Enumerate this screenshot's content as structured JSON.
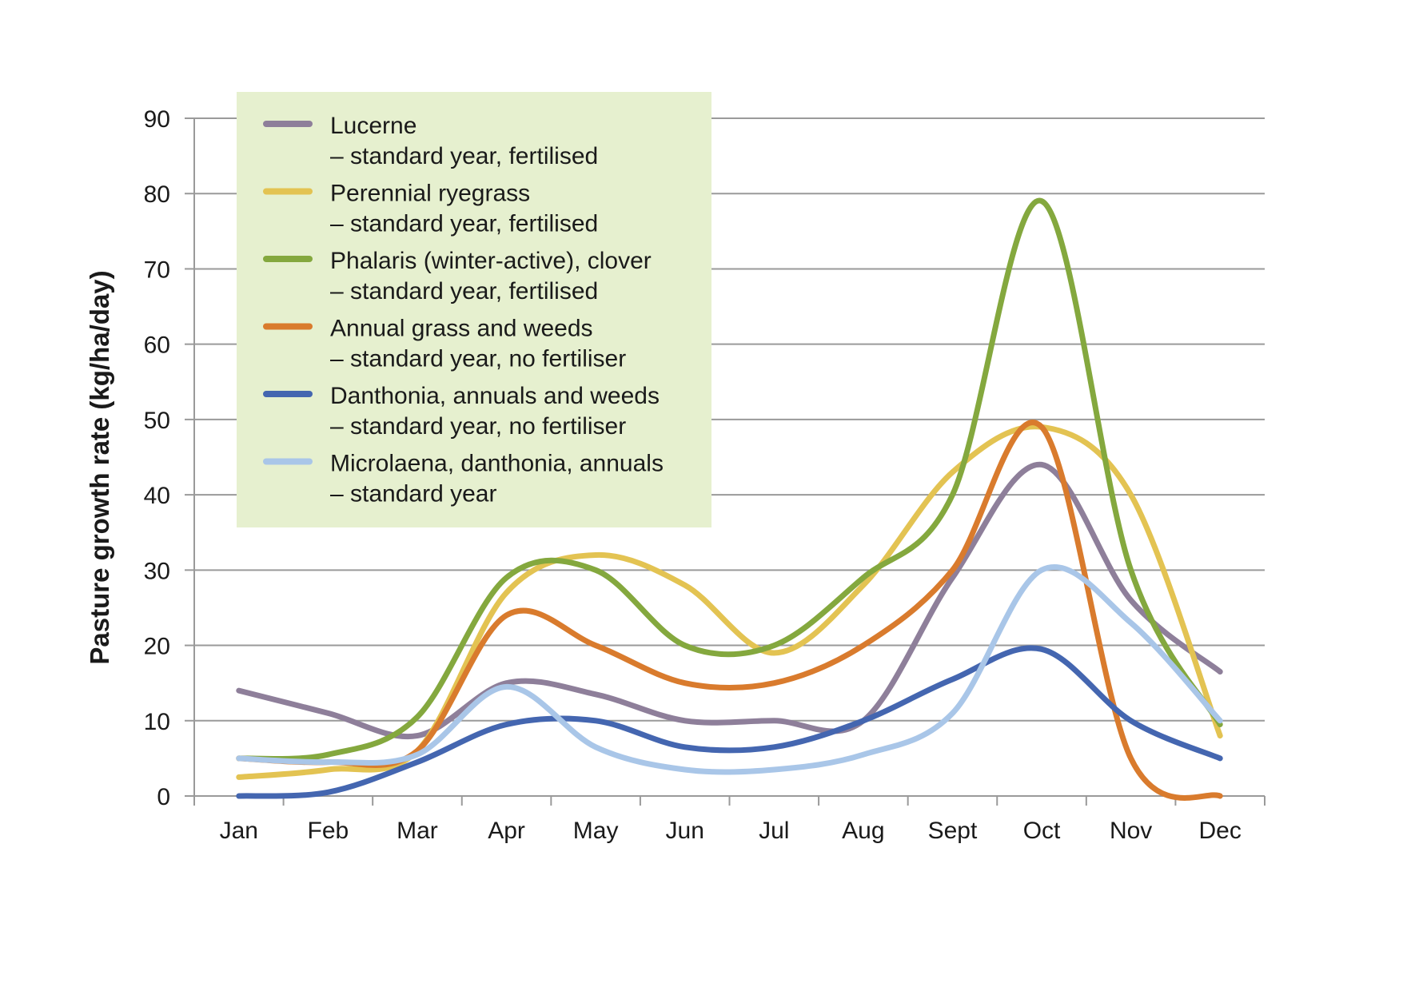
{
  "chart_data": {
    "type": "line",
    "title": "",
    "xlabel": "",
    "ylabel": "Pasture growth rate (kg/ha/day)",
    "ylim": [
      0,
      90
    ],
    "yticks": [
      0,
      10,
      20,
      30,
      40,
      50,
      60,
      70,
      80,
      90
    ],
    "categories": [
      "Jan",
      "Feb",
      "Mar",
      "Apr",
      "May",
      "Jun",
      "Jul",
      "Aug",
      "Sept",
      "Oct",
      "Nov",
      "Dec"
    ],
    "grid": "horizontal",
    "legend_position": "top-left",
    "legend_background": "#e6f0cf",
    "series": [
      {
        "name": "Lucerne",
        "subtitle": "– standard year, fertilised",
        "color": "#8e7f9a",
        "values": [
          14,
          11,
          8,
          15,
          13.5,
          10,
          10,
          10,
          29,
          44,
          26,
          16.5
        ]
      },
      {
        "name": "Perennial ryegrass",
        "subtitle": "– standard year, fertilised",
        "color": "#e3c352",
        "values": [
          2.5,
          3.5,
          6,
          27,
          32,
          28,
          19,
          28,
          43,
          49,
          40,
          8
        ]
      },
      {
        "name": "Phalaris (winter-active), clover",
        "subtitle": "– standard year, fertilised",
        "color": "#84a83e",
        "values": [
          5,
          5.5,
          10.5,
          29,
          30,
          20,
          20,
          29,
          40,
          79,
          30,
          9.5
        ]
      },
      {
        "name": "Annual grass and weeds",
        "subtitle": "– standard year, no fertiliser",
        "color": "#d97b2d",
        "values": [
          5,
          4.5,
          6,
          24,
          20,
          15,
          15,
          20,
          30,
          49,
          5,
          0
        ]
      },
      {
        "name": "Danthonia, annuals and weeds",
        "subtitle": "– standard year, no fertiliser",
        "color": "#4466b0",
        "values": [
          0,
          0.5,
          4.5,
          9.5,
          10,
          6.5,
          6.5,
          10,
          15.5,
          19.5,
          10,
          5
        ]
      },
      {
        "name": "Microlaena, danthonia, annuals",
        "subtitle": "– standard year",
        "color": "#a9c6e8",
        "values": [
          5,
          4.5,
          5.5,
          14.5,
          6.5,
          3.5,
          3.5,
          5.5,
          11,
          30,
          23,
          10
        ]
      }
    ]
  }
}
